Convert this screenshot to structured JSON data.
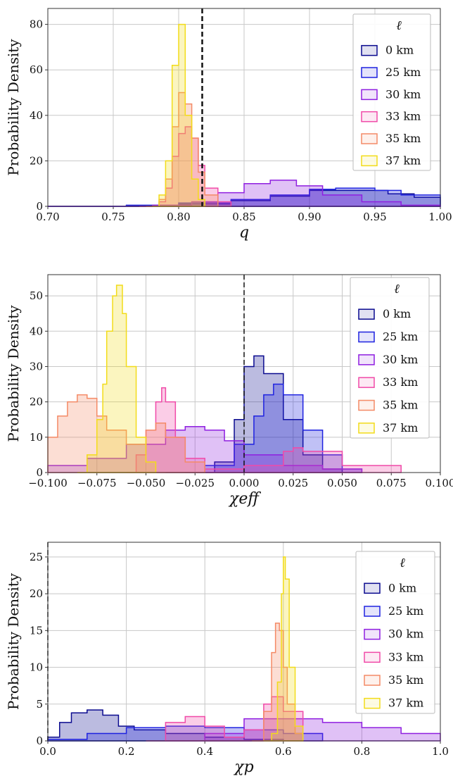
{
  "colors": {
    "0 km": "#0a0a8f",
    "25 km": "#1e22e0",
    "30 km": "#8f1fe0",
    "33 km": "#f04aa8",
    "35 km": "#f48a66",
    "37 km": "#f2dc1a"
  },
  "legend_title": "ℓ",
  "chart_data": [
    {
      "type": "area",
      "style": "step-histogram",
      "ylabel": "Probability Density",
      "xlabel": "q",
      "xlim": [
        0.7,
        1.0
      ],
      "ylim": [
        0,
        87
      ],
      "xticks": [
        "0.70",
        "0.75",
        "0.80",
        "0.85",
        "0.90",
        "0.95",
        "1.00"
      ],
      "yticks": [
        "0",
        "20",
        "40",
        "60",
        "80"
      ],
      "grid": true,
      "legend_position": "top-right",
      "reference_line": 0.818,
      "series": [
        {
          "name": "0 km",
          "x": [
            0.7,
            0.76,
            0.8,
            0.84,
            0.87,
            0.9,
            0.93,
            0.96,
            0.98,
            1.0
          ],
          "values": [
            0,
            0.3,
            1.0,
            2.5,
            4.5,
            7.0,
            7.0,
            5.5,
            4.0,
            3.0
          ]
        },
        {
          "name": "25 km",
          "x": [
            0.7,
            0.76,
            0.8,
            0.84,
            0.87,
            0.9,
            0.92,
            0.95,
            0.97,
            1.0
          ],
          "values": [
            0,
            0.5,
            1.5,
            3.0,
            5.0,
            7.5,
            8.0,
            7.0,
            5.0,
            3.0
          ]
        },
        {
          "name": "30 km",
          "x": [
            0.7,
            0.78,
            0.81,
            0.83,
            0.85,
            0.87,
            0.89,
            0.91,
            0.94,
            0.97,
            1.0
          ],
          "values": [
            0,
            0.5,
            2.0,
            6.0,
            10.0,
            11.5,
            9.0,
            5.0,
            2.0,
            0.5,
            0
          ]
        },
        {
          "name": "33 km",
          "x": [
            0.77,
            0.785,
            0.79,
            0.795,
            0.8,
            0.805,
            0.81,
            0.815,
            0.82,
            0.83,
            0.84
          ],
          "values": [
            0,
            2,
            8,
            22,
            32,
            35,
            30,
            18,
            8,
            2,
            0
          ]
        },
        {
          "name": "35 km",
          "x": [
            0.775,
            0.785,
            0.79,
            0.795,
            0.8,
            0.805,
            0.81,
            0.815,
            0.82,
            0.83
          ],
          "values": [
            0,
            3,
            12,
            35,
            50,
            45,
            30,
            15,
            5,
            0
          ]
        },
        {
          "name": "37 km",
          "x": [
            0.78,
            0.785,
            0.79,
            0.795,
            0.8,
            0.805,
            0.81,
            0.815,
            0.82
          ],
          "values": [
            0,
            5,
            20,
            62,
            80,
            40,
            12,
            3,
            0
          ]
        }
      ]
    },
    {
      "type": "area",
      "style": "step-histogram",
      "ylabel": "Probability Density",
      "xlabel": "χeff",
      "xlim": [
        -0.1,
        0.1
      ],
      "ylim": [
        0,
        56
      ],
      "xticks": [
        "−0.100",
        "−0.075",
        "−0.050",
        "−0.025",
        "0.000",
        "0.025",
        "0.050",
        "0.075",
        "0.100"
      ],
      "yticks": [
        "0",
        "10",
        "20",
        "30",
        "40",
        "50"
      ],
      "grid": true,
      "legend_position": "top-right",
      "reference_line": 0.0,
      "series": [
        {
          "name": "0 km",
          "x": [
            -0.03,
            -0.015,
            -0.005,
            0.0,
            0.005,
            0.01,
            0.02,
            0.03,
            0.04,
            0.05
          ],
          "values": [
            0,
            3,
            15,
            30,
            33,
            28,
            15,
            5,
            1,
            0
          ]
        },
        {
          "name": "25 km",
          "x": [
            -0.04,
            -0.02,
            -0.005,
            0.005,
            0.01,
            0.015,
            0.02,
            0.03,
            0.04,
            0.05,
            0.06
          ],
          "values": [
            0,
            2,
            8,
            16,
            22,
            25,
            22,
            12,
            5,
            1,
            0
          ]
        },
        {
          "name": "30 km",
          "x": [
            -0.1,
            -0.08,
            -0.06,
            -0.04,
            -0.03,
            -0.02,
            -0.01,
            0.0,
            0.02,
            0.04,
            0.06
          ],
          "values": [
            2,
            4,
            8,
            12,
            13,
            12,
            9,
            5,
            2,
            1,
            0
          ]
        },
        {
          "name": "33 km",
          "x": [
            -0.06,
            -0.055,
            -0.05,
            -0.045,
            -0.042,
            -0.04,
            -0.035,
            -0.03,
            -0.02,
            0.0,
            0.02,
            0.025,
            0.03,
            0.05,
            0.08
          ],
          "values": [
            0,
            5,
            12,
            20,
            24,
            20,
            10,
            4,
            1,
            2,
            6,
            7,
            6,
            2,
            0
          ]
        },
        {
          "name": "35 km",
          "x": [
            -0.1,
            -0.095,
            -0.09,
            -0.085,
            -0.08,
            -0.075,
            -0.07,
            -0.06,
            -0.05,
            -0.045,
            -0.04,
            -0.03,
            -0.02
          ],
          "values": [
            10,
            16,
            20,
            22,
            21,
            16,
            12,
            8,
            12,
            14,
            10,
            3,
            0
          ]
        },
        {
          "name": "37 km",
          "x": [
            -0.085,
            -0.08,
            -0.075,
            -0.072,
            -0.07,
            -0.067,
            -0.065,
            -0.062,
            -0.06,
            -0.055,
            -0.05,
            -0.045
          ],
          "values": [
            0,
            5,
            15,
            25,
            40,
            50,
            53,
            45,
            30,
            10,
            3,
            0
          ]
        }
      ]
    },
    {
      "type": "area",
      "style": "step-histogram",
      "ylabel": "Probability Density",
      "xlabel": "χp",
      "xlim": [
        0.0,
        1.0
      ],
      "ylim": [
        0,
        27
      ],
      "xticks": [
        "0.0",
        "0.2",
        "0.4",
        "0.6",
        "0.8",
        "1.0"
      ],
      "yticks": [
        "0",
        "5",
        "10",
        "15",
        "20",
        "25"
      ],
      "grid": true,
      "legend_position": "top-right",
      "reference_line": 0.0,
      "series": [
        {
          "name": "0 km",
          "x": [
            0.0,
            0.03,
            0.06,
            0.1,
            0.14,
            0.18,
            0.22,
            0.3,
            0.4,
            0.5,
            0.6
          ],
          "values": [
            0.5,
            2.5,
            3.8,
            4.2,
            3.5,
            2.0,
            1.5,
            1.0,
            0.5,
            0.2,
            0
          ]
        },
        {
          "name": "25 km",
          "x": [
            0.0,
            0.1,
            0.2,
            0.3,
            0.4,
            0.5,
            0.6,
            0.7
          ],
          "values": [
            0.2,
            1.0,
            1.8,
            2.0,
            1.8,
            1.5,
            1.0,
            0
          ]
        },
        {
          "name": "30 km",
          "x": [
            0.3,
            0.4,
            0.5,
            0.6,
            0.7,
            0.8,
            0.9,
            1.0
          ],
          "values": [
            0,
            1.0,
            3.0,
            3.0,
            2.5,
            1.8,
            1.0,
            0.3
          ]
        },
        {
          "name": "33 km",
          "x": [
            0.25,
            0.3,
            0.35,
            0.4,
            0.45,
            0.5,
            0.55,
            0.57,
            0.6,
            0.65
          ],
          "values": [
            0,
            2.5,
            3.3,
            2.0,
            0.5,
            1.5,
            5.0,
            6.0,
            4.0,
            0
          ]
        },
        {
          "name": "35 km",
          "x": [
            0.52,
            0.55,
            0.57,
            0.58,
            0.59,
            0.6,
            0.61,
            0.63,
            0.65
          ],
          "values": [
            0,
            4,
            12,
            16,
            15,
            10,
            5,
            1,
            0
          ]
        },
        {
          "name": "37 km",
          "x": [
            0.55,
            0.57,
            0.585,
            0.595,
            0.6,
            0.605,
            0.615,
            0.63,
            0.65
          ],
          "values": [
            0,
            1,
            8,
            20,
            25,
            22,
            10,
            2,
            0
          ]
        }
      ]
    }
  ]
}
